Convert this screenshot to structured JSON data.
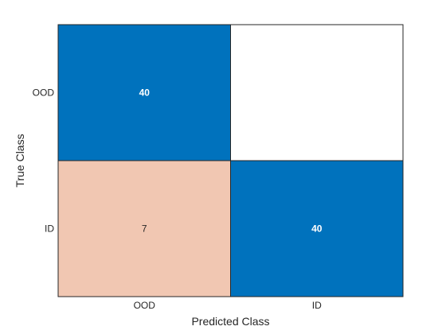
{
  "chart_data": {
    "type": "heatmap",
    "chart_kind": "confusion-matrix",
    "xlabel": "Predicted Class",
    "ylabel": "True Class",
    "x_categories": [
      "OOD",
      "ID"
    ],
    "y_categories": [
      "OOD",
      "ID"
    ],
    "values": [
      [
        40,
        0
      ],
      [
        7,
        40
      ]
    ],
    "hide_zero_cells": true,
    "colors": {
      "diagonal": "#0072bd",
      "off_diagonal": "#f1c7b2",
      "empty": "#ffffff",
      "diagonal_text": "#ffffff",
      "off_diagonal_text": "#262626",
      "grid_line": "#262626"
    }
  }
}
